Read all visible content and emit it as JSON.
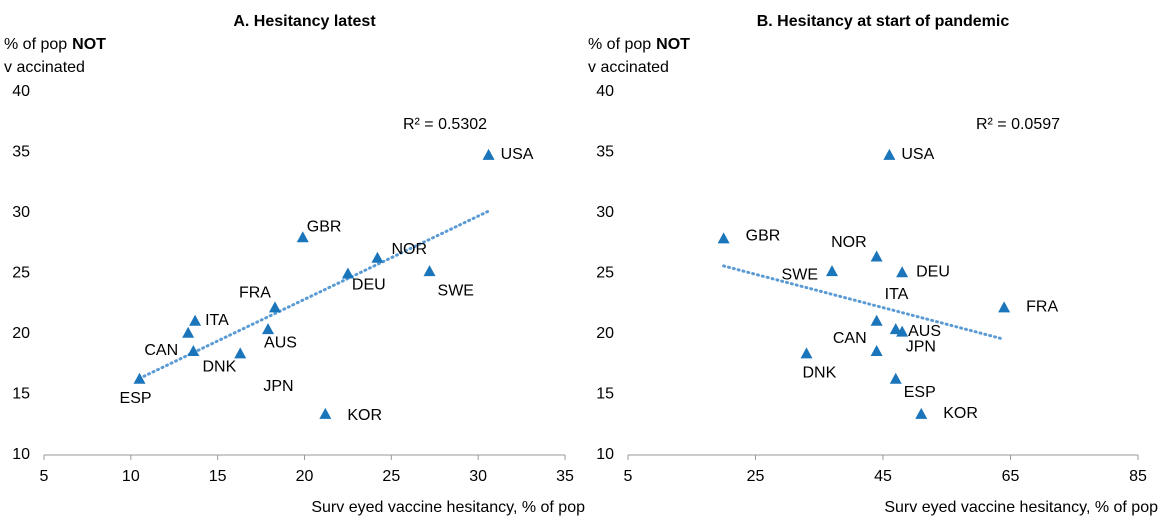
{
  "chart_data": [
    {
      "type": "scatter",
      "title": "A. Hesitancy  latest",
      "ylabel": {
        "line1": "% of pop",
        "emphasis": "NOT",
        "line2": "v accinated"
      },
      "xlabel": "Surv eyed vaccine hesitancy, % of pop",
      "annotation": "R² = 0.5302",
      "labels": [
        "USA",
        "GBR",
        "NOR",
        "DEU",
        "SWE",
        "FRA",
        "ITA",
        "CAN",
        "AUS",
        "DNK",
        "JPN",
        "ESP",
        "KOR"
      ],
      "x": [
        30.6,
        19.9,
        24.2,
        22.5,
        27.2,
        18.3,
        13.7,
        13.3,
        17.9,
        16.3,
        13.6,
        10.5,
        21.2
      ],
      "values": [
        34.8,
        28.0,
        26.3,
        25.0,
        25.2,
        22.2,
        21.1,
        20.1,
        20.4,
        18.4,
        18.6,
        16.3,
        13.4
      ],
      "color": "#1a75bb",
      "trendline": true,
      "trend_color": "#5b9bd5",
      "xlim": [
        5,
        35
      ],
      "xticks": [
        5,
        10,
        15,
        20,
        25,
        30,
        35
      ],
      "ylim": [
        10,
        40
      ],
      "yticks": [
        10,
        15,
        20,
        25,
        30,
        35,
        40
      ]
    },
    {
      "type": "scatter",
      "title": "B. Hesitancy  at start of pandemic",
      "ylabel": {
        "line1": "% of pop",
        "emphasis": "NOT",
        "line2": "v accinated"
      },
      "xlabel": "Surv eyed vaccine hesitancy, % of pop",
      "annotation": "R² = 0.0597",
      "labels": [
        "USA",
        "GBR",
        "NOR",
        "DEU",
        "SWE",
        "FRA",
        "ITA",
        "CAN",
        "AUS",
        "DNK",
        "JPN",
        "ESP",
        "KOR"
      ],
      "x": [
        46,
        20,
        44,
        48,
        37,
        64,
        44,
        44,
        48,
        33,
        47,
        47,
        51
      ],
      "values": [
        34.8,
        27.9,
        26.4,
        25.1,
        25.2,
        22.2,
        21.1,
        18.6,
        20.2,
        18.4,
        20.4,
        16.3,
        13.4
      ],
      "color": "#1a75bb",
      "trendline": true,
      "trend_color": "#5b9bd5",
      "xlim": [
        5,
        85
      ],
      "xticks": [
        5,
        25,
        45,
        65,
        85
      ],
      "ylim": [
        10,
        40
      ],
      "yticks": [
        10,
        15,
        20,
        25,
        30,
        35,
        40
      ]
    }
  ]
}
